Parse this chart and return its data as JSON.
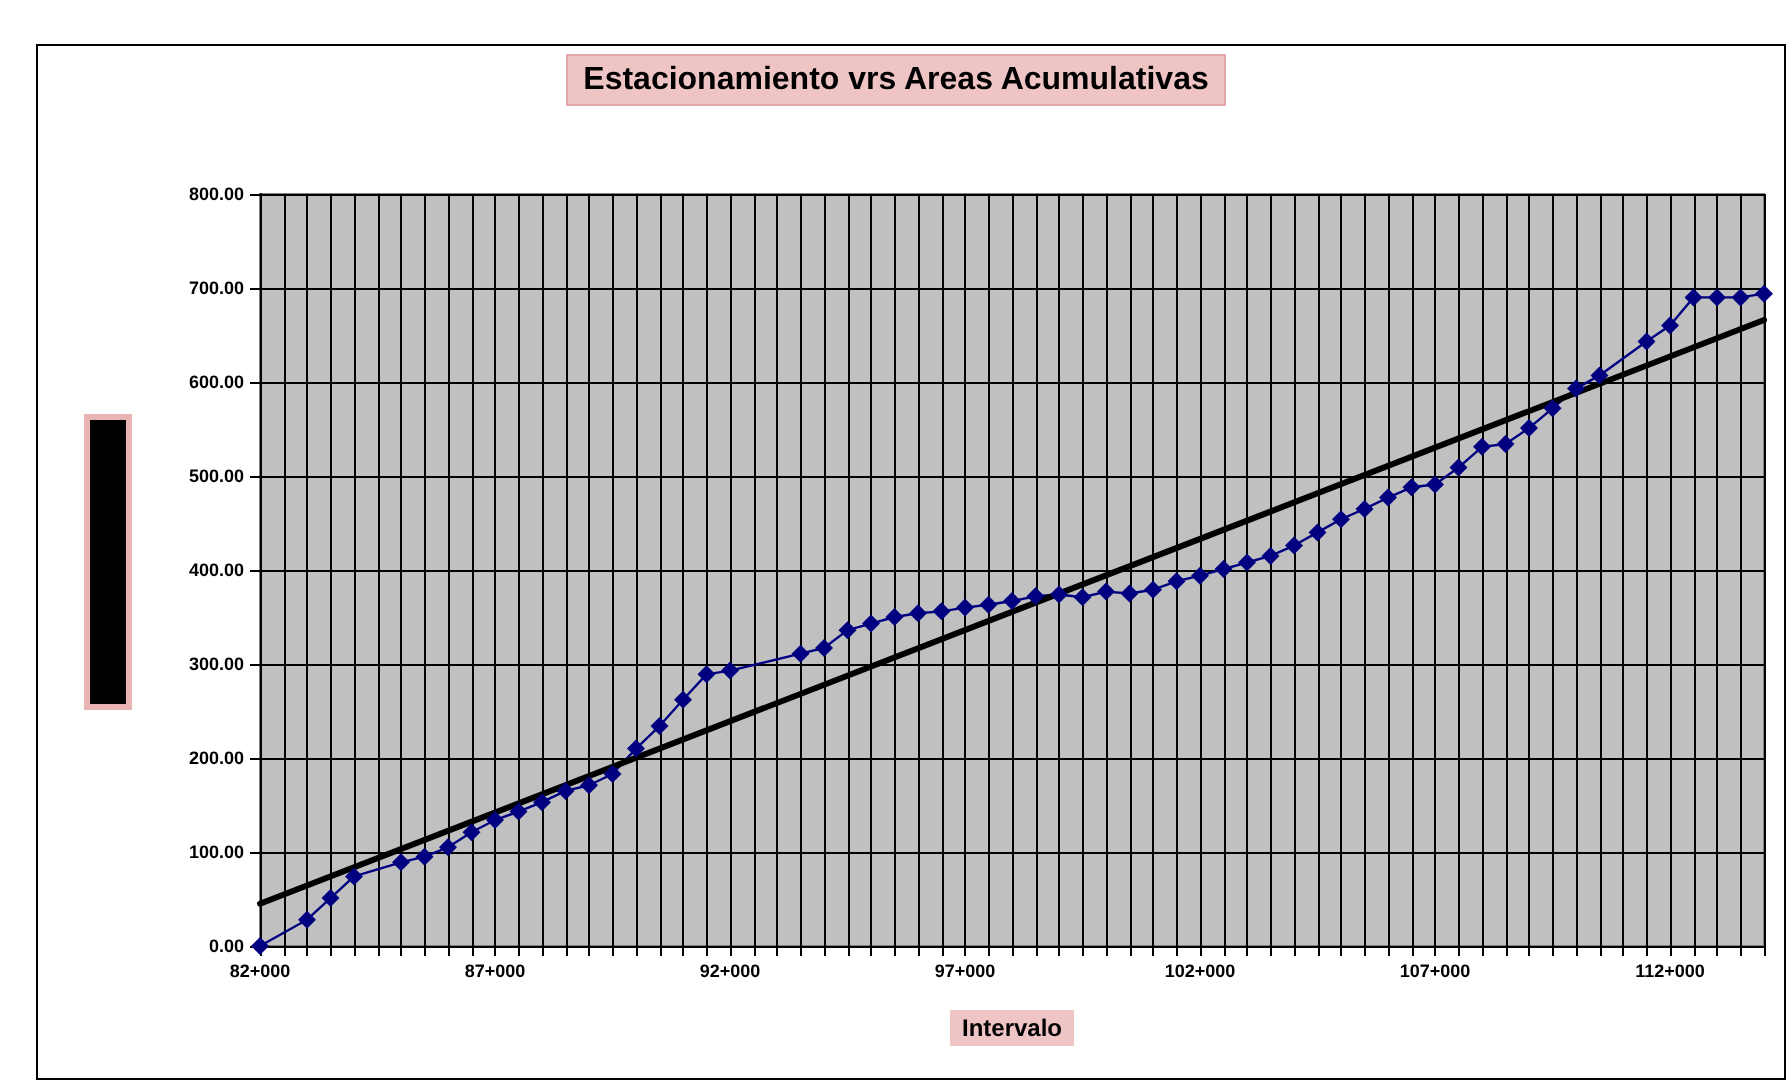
{
  "chart_data": {
    "type": "line",
    "title": "Estacionamiento vrs Areas Acumulativas",
    "xlabel": "Intervalo",
    "categories": [
      "82+000",
      null,
      null,
      null,
      null,
      null,
      null,
      null,
      null,
      null,
      "87+000",
      null,
      null,
      null,
      null,
      null,
      null,
      null,
      null,
      null,
      "92+000",
      null,
      null,
      null,
      null,
      null,
      null,
      null,
      null,
      null,
      "97+000",
      null,
      null,
      null,
      null,
      null,
      null,
      null,
      null,
      null,
      "102+000",
      null,
      null,
      null,
      null,
      null,
      null,
      null,
      null,
      null,
      "107+000",
      null,
      null,
      null,
      null,
      null,
      null,
      null,
      null,
      null,
      "112+000",
      null,
      null,
      null,
      null
    ],
    "ylim": [
      0,
      800
    ],
    "yticks": [
      {
        "value": 0,
        "label": "0.00"
      },
      {
        "value": 100,
        "label": "100.00"
      },
      {
        "value": 200,
        "label": "200.00"
      },
      {
        "value": 300,
        "label": "300.00"
      },
      {
        "value": 400,
        "label": "400.00"
      },
      {
        "value": 500,
        "label": "500.00"
      },
      {
        "value": 600,
        "label": "600.00"
      },
      {
        "value": 700,
        "label": "700.00"
      },
      {
        "value": 800,
        "label": "800.00"
      }
    ],
    "grid": true,
    "marker": "diamond",
    "line_style": "solid",
    "series": [
      {
        "color": "#000080",
        "values": [
          0,
          null,
          28,
          51,
          74,
          null,
          89,
          95,
          105,
          121,
          134,
          143,
          153,
          165,
          171,
          183,
          210,
          234,
          262,
          289,
          293,
          null,
          null,
          311,
          317,
          336,
          343,
          350,
          354,
          356,
          360,
          363,
          367,
          372,
          374,
          371,
          377,
          375,
          379,
          388,
          394,
          401,
          408,
          415,
          426,
          440,
          454,
          465,
          477,
          488,
          491,
          509,
          531,
          534,
          551,
          572,
          593,
          607,
          null,
          643,
          660,
          690,
          690,
          690,
          694
        ]
      },
      {
        "color": "#000000",
        "marker": "none",
        "values": [
          45,
          null,
          null,
          null,
          null,
          null,
          null,
          null,
          null,
          null,
          null,
          null,
          null,
          null,
          null,
          null,
          null,
          null,
          null,
          null,
          null,
          null,
          null,
          null,
          null,
          null,
          null,
          null,
          null,
          null,
          null,
          null,
          null,
          null,
          null,
          null,
          null,
          null,
          null,
          null,
          null,
          null,
          null,
          null,
          null,
          null,
          null,
          null,
          null,
          null,
          null,
          null,
          null,
          null,
          null,
          null,
          null,
          null,
          null,
          null,
          null,
          null,
          null,
          null,
          666
        ]
      }
    ]
  }
}
